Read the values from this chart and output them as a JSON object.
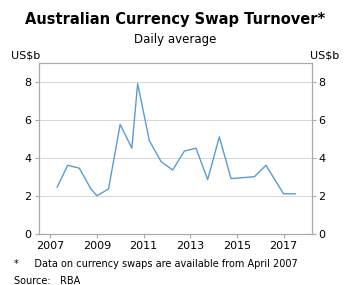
{
  "title": "Australian Currency Swap Turnover*",
  "subtitle": "Daily average",
  "ylabel_left": "US$b",
  "ylabel_right": "US$b",
  "footnote": "*     Data on currency swaps are available from April 2007",
  "source": "Source:   RBA",
  "line_color": "#5B9BD5",
  "x_values": [
    2007.3,
    2007.75,
    2008.25,
    2008.75,
    2009.0,
    2009.5,
    2010.0,
    2010.5,
    2010.75,
    2011.25,
    2011.75,
    2012.25,
    2012.75,
    2013.25,
    2013.75,
    2014.25,
    2014.75,
    2015.25,
    2015.75,
    2016.25,
    2017.0,
    2017.5
  ],
  "y_values": [
    2.45,
    3.6,
    3.45,
    2.35,
    2.0,
    2.35,
    5.75,
    4.5,
    7.9,
    4.9,
    3.8,
    3.35,
    4.35,
    4.5,
    2.85,
    5.1,
    2.9,
    2.95,
    3.0,
    3.6,
    2.1,
    2.1
  ],
  "xlim": [
    2006.5,
    2018.2
  ],
  "ylim": [
    0,
    9
  ],
  "yticks": [
    0,
    2,
    4,
    6,
    8
  ],
  "xticks": [
    2007,
    2009,
    2011,
    2013,
    2015,
    2017
  ],
  "grid_color": "#d0d0d0",
  "background_color": "#ffffff",
  "title_fontsize": 10.5,
  "subtitle_fontsize": 8.5,
  "tick_fontsize": 8,
  "label_fontsize": 8,
  "footnote_fontsize": 7
}
